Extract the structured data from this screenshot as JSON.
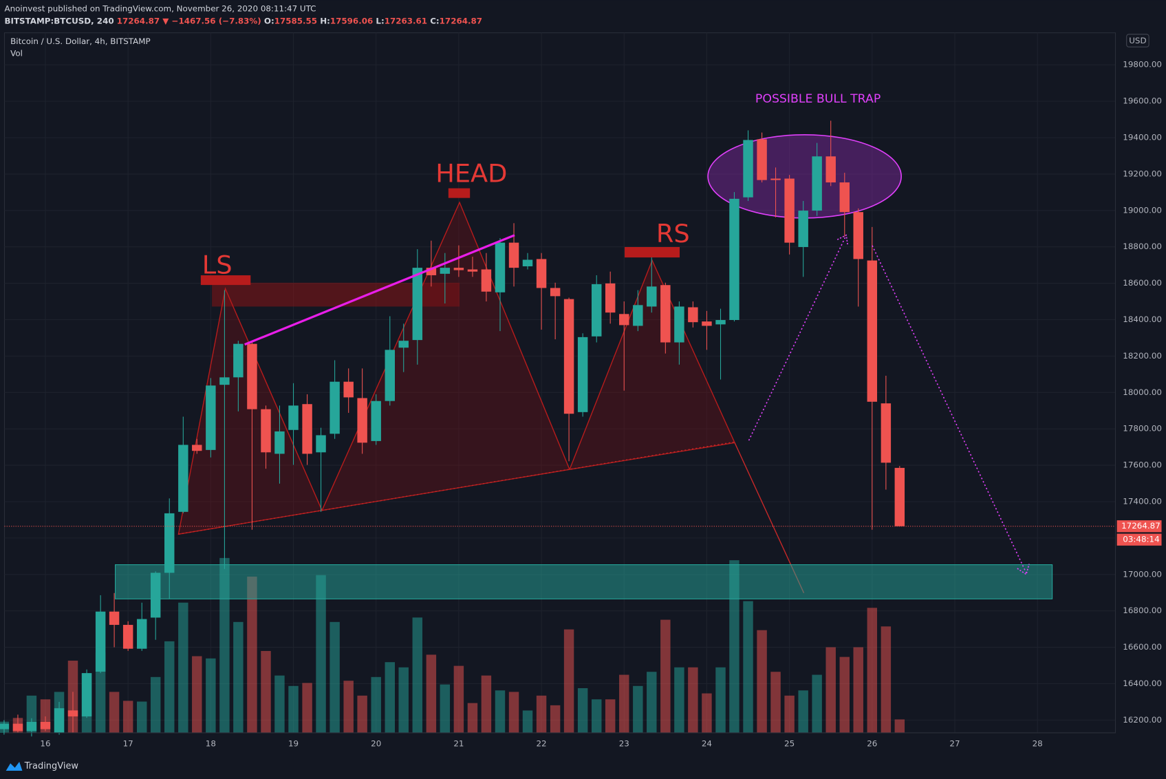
{
  "header": {
    "published": "Anoinvest published on TradingView.com, November 26, 2020 08:11:47 UTC",
    "symbol": "BITSTAMP:BTCUSD, 240",
    "last": "17264.87",
    "change": "▼ −1467.56 (−7.83%)",
    "ohlc": [
      {
        "label": "O:",
        "value": "17585.55"
      },
      {
        "label": "H:",
        "value": "17596.06"
      },
      {
        "label": "L:",
        "value": "17263.61"
      },
      {
        "label": "C:",
        "value": "17264.87"
      }
    ]
  },
  "chart_data": {
    "type": "candlestick",
    "title": "Bitcoin / U.S. Dollar, 4h, BITSTAMP",
    "currency": "USD",
    "up_color": "#26a69a",
    "down_color": "#ef5350",
    "x": [
      15.5,
      15.667,
      15.833,
      16,
      16.167,
      16.333,
      16.5,
      16.667,
      16.833,
      17,
      17.167,
      17.333,
      17.5,
      17.667,
      17.833,
      18,
      18.167,
      18.333,
      18.5,
      18.667,
      18.833,
      19,
      19.167,
      19.333,
      19.5,
      19.667,
      19.833,
      20,
      20.167,
      20.333,
      20.5,
      20.667,
      20.833,
      21,
      21.167,
      21.333,
      21.5,
      21.667,
      21.833,
      22,
      22.167,
      22.333,
      22.5,
      22.667,
      22.833,
      23,
      23.167,
      23.333,
      23.5,
      23.667,
      23.833,
      24,
      24.167,
      24.333,
      24.5,
      24.667,
      24.833,
      25,
      25.167,
      25.333,
      25.5,
      25.667,
      25.833,
      26,
      26.167,
      26.333
    ],
    "open": [
      16150,
      16180,
      16140,
      16190,
      16130,
      16253,
      16220,
      16466,
      16796,
      16723,
      16592,
      16763,
      17009,
      17344,
      17712,
      17684,
      18042,
      18083,
      18267,
      17908,
      17663,
      17794,
      17936,
      17671,
      17773,
      18059,
      17969,
      17733,
      17953,
      18246,
      18288,
      18685,
      18652,
      18685,
      18676,
      18676,
      18550,
      18823,
      18693,
      18733,
      18574,
      18513,
      17892,
      18308,
      18599,
      18431,
      18366,
      18472,
      18590,
      18275,
      18468,
      18390,
      18374,
      18398,
      19072,
      19391,
      19175,
      19175,
      18799,
      18999,
      19297,
      19154,
      18991,
      18725,
      17940,
      17585.55
    ],
    "high": [
      16200,
      16230,
      16210,
      16220,
      16300,
      16355,
      16478,
      16886,
      16898,
      16743,
      16845,
      17017,
      17418,
      17867,
      17745,
      18079,
      18562,
      18284,
      18275,
      17928,
      17928,
      18051,
      17990,
      17806,
      18177,
      18132,
      18132,
      17990,
      18419,
      18378,
      18787,
      18834,
      18766,
      18808,
      18746,
      18766,
      18848,
      18930,
      18766,
      18766,
      18603,
      18521,
      18325,
      18644,
      18664,
      18500,
      18562,
      18759,
      18603,
      18500,
      18500,
      18448,
      18460,
      19101,
      19440,
      19428,
      19236,
      19195,
      19052,
      19371,
      19493,
      19207,
      19011,
      18909,
      18092,
      17596.06
    ],
    "low": [
      16120,
      16130,
      16110,
      16140,
      16120,
      16130,
      16212,
      16458,
      16600,
      16580,
      16580,
      16641,
      16866,
      17336,
      17663,
      17643,
      17030,
      17896,
      17246,
      17581,
      17499,
      17602,
      17602,
      17344,
      17745,
      17888,
      17663,
      17712,
      17928,
      18112,
      18153,
      18582,
      18489,
      18635,
      18635,
      18500,
      18337,
      18582,
      18676,
      18345,
      18292,
      17622,
      17867,
      18275,
      18378,
      18010,
      18337,
      18439,
      18214,
      18153,
      18357,
      18234,
      18071,
      18390,
      19052,
      19154,
      18962,
      18758,
      18635,
      18970,
      19134,
      18856,
      18472,
      17246,
      17466,
      17263.61
    ],
    "close": [
      16180,
      16140,
      16190,
      16150,
      16265,
      16220,
      16458,
      16796,
      16723,
      16592,
      16755,
      17009,
      17336,
      17712,
      17679,
      18038,
      18083,
      18267,
      17908,
      17671,
      17786,
      17928,
      17663,
      17765,
      18059,
      17973,
      17724,
      17953,
      18234,
      18284,
      18685,
      18644,
      18685,
      18672,
      18664,
      18554,
      18823,
      18685,
      18729,
      18574,
      18529,
      17883,
      18304,
      18595,
      18439,
      18370,
      18480,
      18582,
      18275,
      18472,
      18386,
      18366,
      18398,
      19064,
      19387,
      19167,
      19167,
      18823,
      18999,
      19297,
      19154,
      18991,
      18733,
      17949,
      17614,
      17264.87
    ],
    "volume": {
      "name": "Vol",
      "values": [
        15,
        20,
        50,
        45,
        55,
        97,
        80,
        108,
        55,
        43,
        42,
        75,
        123,
        175,
        103,
        100,
        235,
        149,
        210,
        110,
        77,
        63,
        67,
        212,
        149,
        70,
        50,
        75,
        95,
        88,
        155,
        105,
        65,
        90,
        40,
        77,
        57,
        55,
        30,
        50,
        37,
        139,
        60,
        45,
        45,
        78,
        63,
        82,
        152,
        88,
        88,
        53,
        88,
        232,
        177,
        138,
        82,
        50,
        57,
        78,
        115,
        102,
        115,
        168,
        143,
        18
      ]
    },
    "xlim": [
      15.505,
      28.943
    ],
    "xticks": [
      16,
      17,
      18,
      19,
      20,
      21,
      22,
      23,
      24,
      25,
      26,
      27,
      28
    ],
    "ylim": [
      16130,
      19976
    ],
    "yticks": [
      {
        "value": 16200,
        "label": "16200.00"
      },
      {
        "value": 16400,
        "label": "16400.00"
      },
      {
        "value": 16600,
        "label": "16600.00"
      },
      {
        "value": 16800,
        "label": "16800.00"
      },
      {
        "value": 17000,
        "label": "17000.00"
      },
      {
        "value": 17200,
        "label": "17200.00"
      },
      {
        "value": 17400,
        "label": "17400.00"
      },
      {
        "value": 17600,
        "label": "17600.00"
      },
      {
        "value": 17800,
        "label": "17800.00"
      },
      {
        "value": 18000,
        "label": "18000.00"
      },
      {
        "value": 18200,
        "label": "18200.00"
      },
      {
        "value": 18400,
        "label": "18400.00"
      },
      {
        "value": 18600,
        "label": "18600.00"
      },
      {
        "value": 18800,
        "label": "18800.00"
      },
      {
        "value": 19000,
        "label": "19000.00"
      },
      {
        "value": 19200,
        "label": "19200.00"
      },
      {
        "value": 19400,
        "label": "19400.00"
      },
      {
        "value": 19600,
        "label": "19600.00"
      },
      {
        "value": 19800,
        "label": "19800.00"
      }
    ],
    "grid": true,
    "last_price": 17264.87,
    "countdown": "03:48:14",
    "annotations": {
      "ls": "LS",
      "head": "HEAD",
      "rs": "RS",
      "bull_trap": "POSSIBLE BULL TRAP"
    }
  },
  "footer": {
    "brand": "TradingView"
  }
}
